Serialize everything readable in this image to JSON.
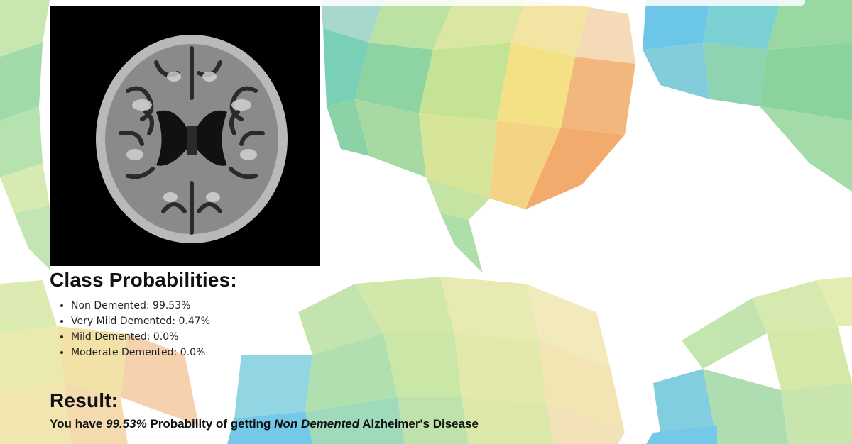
{
  "scan": {
    "alt": "Axial brain MRI scan"
  },
  "probabilities": {
    "title": "Class Probabilities:",
    "items": [
      {
        "label": "Non Demented: 99.53%"
      },
      {
        "label": "Very Mild Demented: 0.47%"
      },
      {
        "label": "Mild Demented: 0.0%"
      },
      {
        "label": "Moderate Demented: 0.0%"
      }
    ]
  },
  "result": {
    "title": "Result:",
    "prefix": "You have ",
    "probability": "99.53%",
    "middle": " Probability of getting ",
    "class_name": "Non Demented",
    "suffix": " Alzheimer's Disease"
  },
  "colors": {
    "green": "#8fd49a",
    "yellow": "#f3e07a",
    "orange": "#f2a65e",
    "blue": "#5cc0e6",
    "text": "#111111"
  }
}
